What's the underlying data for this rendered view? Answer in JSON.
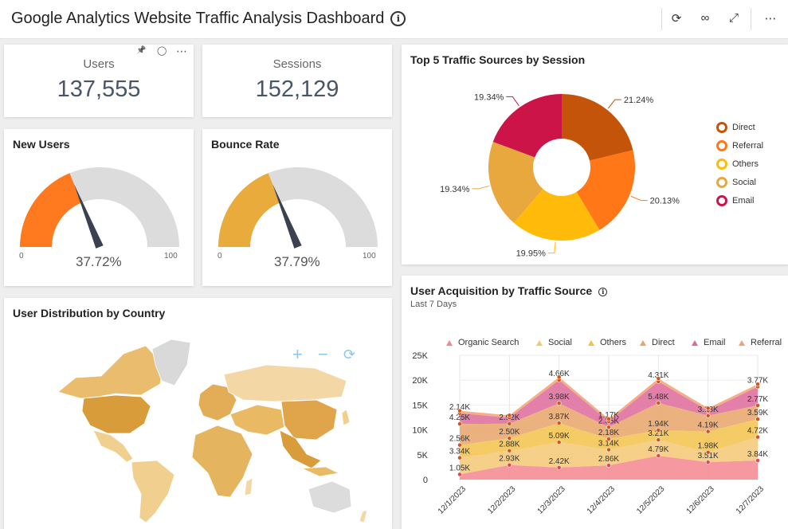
{
  "header": {
    "title": "Google Analytics Website Traffic Analysis Dashboard",
    "info_symbol": "i",
    "refresh_symbol": "⟳",
    "view_symbol": "∞",
    "expand_symbol": "⤢",
    "more_symbol": "⋯"
  },
  "kpis": [
    {
      "label": "Users",
      "value": "137,555"
    },
    {
      "label": "Sessions",
      "value": "152,129"
    }
  ],
  "kpi_actions": {
    "pin": "📌",
    "comment": "◯",
    "more": "⋯"
  },
  "gauges": [
    {
      "title": "New Users",
      "value": 37.72,
      "value_label": "37.72%",
      "min_label": "0",
      "max_label": "100",
      "color": "#ff7a1f"
    },
    {
      "title": "Bounce Rate",
      "value": 37.79,
      "value_label": "37.79%",
      "min_label": "0",
      "max_label": "100",
      "color": "#e8ab3c"
    }
  ],
  "map": {
    "title": "User Distribution by Country",
    "zoom_in": "+",
    "zoom_out": "−",
    "reset": "⟳"
  },
  "donut_title": "Top 5 Traffic Sources by Session",
  "area_title": "User Acquisition by Traffic Source",
  "area_subtitle": "Last 7 Days",
  "chart_data": [
    {
      "type": "pie",
      "donut": true,
      "title": "Top 5 Traffic Sources by Session",
      "categories": [
        "Direct",
        "Referral",
        "Others",
        "Social",
        "Email"
      ],
      "values": [
        21.24,
        20.13,
        19.95,
        19.34,
        19.34
      ],
      "labels": [
        "21.24%",
        "20.13%",
        "19.95%",
        "19.34%",
        "19.34%"
      ],
      "colors": [
        "#c4540a",
        "#ff7717",
        "#ffba0a",
        "#e8a83d",
        "#cc1448"
      ]
    },
    {
      "type": "area",
      "stacked": true,
      "title": "User Acquisition by Traffic Source",
      "subtitle": "Last 7 Days",
      "categories": [
        "12/1/2023",
        "12/2/2023",
        "12/3/2023",
        "12/4/2023",
        "12/5/2023",
        "12/6/2023",
        "12/7/2023"
      ],
      "series": [
        {
          "name": "Organic Search",
          "values": [
            1.05,
            2.93,
            2.42,
            2.86,
            4.79,
            3.51,
            3.84
          ],
          "labels": [
            "1.05K",
            "2.93K",
            "2.42K",
            "2.86K",
            "4.79K",
            "3.51K",
            "3.84K"
          ],
          "color": "#f4868e"
        },
        {
          "name": "Social",
          "values": [
            3.34,
            2.88,
            5.09,
            3.14,
            3.21,
            1.98,
            4.72
          ],
          "labels": [
            "3.34K",
            "2.88K",
            "5.09K",
            "3.14K",
            "3.21K",
            "1.98K",
            "4.72K"
          ],
          "color": "#f4c873"
        },
        {
          "name": "Others",
          "values": [
            2.56,
            2.5,
            3.87,
            2.18,
            1.94,
            4.19,
            3.59
          ],
          "labels": [
            "2.56K",
            "2.50K",
            "3.87K",
            "2.18K",
            "1.94K",
            "4.19K",
            "3.59K"
          ],
          "color": "#f2c24a"
        },
        {
          "name": "Direct",
          "values": [
            4.25,
            2.92,
            3.98,
            2.35,
            5.48,
            3.18,
            2.77
          ],
          "labels": [
            "4.25K",
            "2.92K",
            "3.98K",
            "2.35K",
            "5.48K",
            "3.18K",
            "2.77K"
          ],
          "color": "#e8a46a"
        },
        {
          "name": "Email",
          "values": [
            2.14,
            1.2,
            4.66,
            1.17,
            4.31,
            1.0,
            3.77
          ],
          "labels": [
            "2.14K",
            "",
            "4.66K",
            "1.17K",
            "4.31K",
            "",
            "3.77K"
          ],
          "color": "#de6a9a"
        },
        {
          "name": "Referral",
          "values": [
            0.5,
            0.5,
            0.6,
            0.5,
            0.6,
            0.5,
            0.5
          ],
          "labels": [
            "",
            "",
            "",
            "",
            "",
            "",
            ""
          ],
          "color": "#f5a070"
        }
      ],
      "yticks": [
        "0",
        "5K",
        "10K",
        "15K",
        "20K",
        "25K"
      ],
      "ylim": [
        0,
        25
      ]
    }
  ]
}
